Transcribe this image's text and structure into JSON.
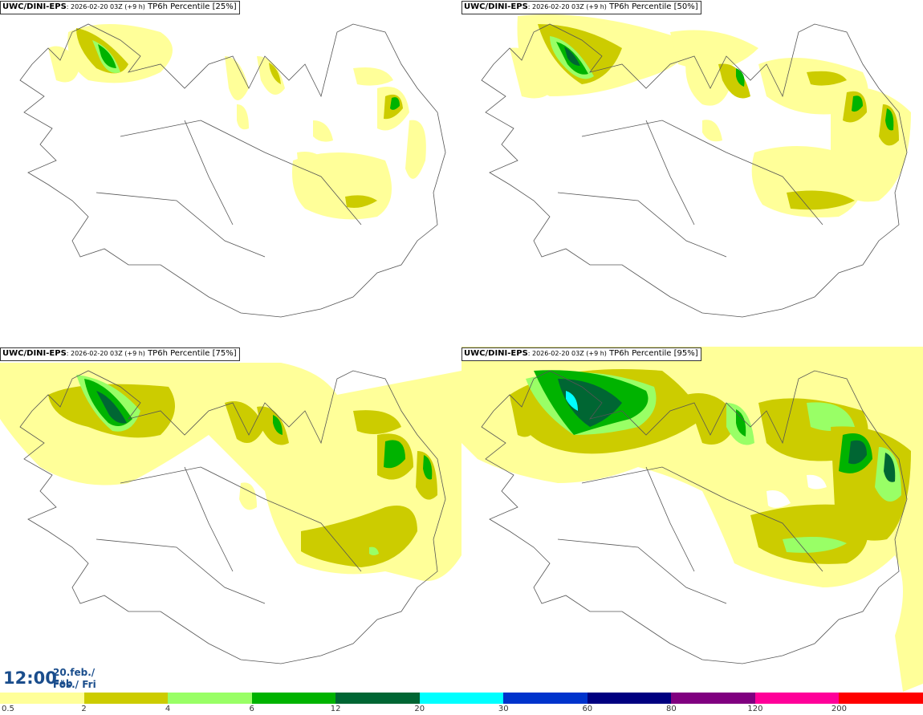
{
  "panels": [
    {
      "model": "UWC/DINI-EPS",
      "run": ": 2026-02-20 03Z (+9 h)",
      "field": " TP6h Percentile [25%]"
    },
    {
      "model": "UWC/DINI-EPS",
      "run": ": 2026-02-20 03Z (+9 h)",
      "field": " TP6h Percentile [50%]"
    },
    {
      "model": "UWC/DINI-EPS",
      "run": ": 2026-02-20 03Z (+9 h)",
      "field": " TP6h Percentile [75%]"
    },
    {
      "model": "UWC/DINI-EPS",
      "run": ": 2026-02-20 03Z (+9 h)",
      "field": " TP6h Percentile [95%]"
    }
  ],
  "valid_time": {
    "time": "12:00",
    "date_line1": "20.feb./ Feb",
    "date_line2": "Fös./ Fri"
  },
  "legend": {
    "colors": [
      "#ffff99",
      "#cccc00",
      "#99ff66",
      "#00b300",
      "#006633",
      "#00ffff",
      "#0033cc",
      "#000080",
      "#800080",
      "#ff0099",
      "#ff0000"
    ],
    "labels": [
      "0.5",
      "2",
      "4",
      "6",
      "12",
      "20",
      "30",
      "60",
      "80",
      "120",
      "200"
    ]
  }
}
